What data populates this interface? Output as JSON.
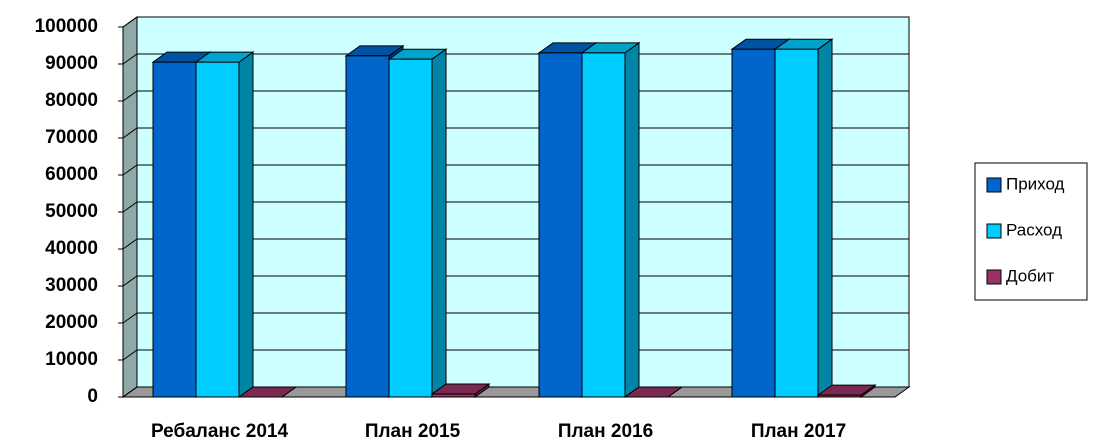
{
  "chart_data": {
    "type": "bar3d",
    "categories": [
      "Ребаланс 2014",
      "План 2015",
      "План 2016",
      "План 2017"
    ],
    "series": [
      {
        "name": "Приход",
        "color": "#0066cc",
        "values": [
          90500,
          92200,
          93000,
          94000
        ]
      },
      {
        "name": "Расход",
        "color": "#00ccff",
        "values": [
          90500,
          91300,
          93000,
          94000
        ]
      },
      {
        "name": "Добит",
        "color": "#993366",
        "values": [
          0,
          800,
          0,
          500
        ]
      }
    ],
    "ylim": [
      0,
      100000
    ],
    "yticks": [
      0,
      10000,
      20000,
      30000,
      40000,
      50000,
      60000,
      70000,
      80000,
      90000,
      100000
    ],
    "grid": true,
    "legend": "right"
  }
}
